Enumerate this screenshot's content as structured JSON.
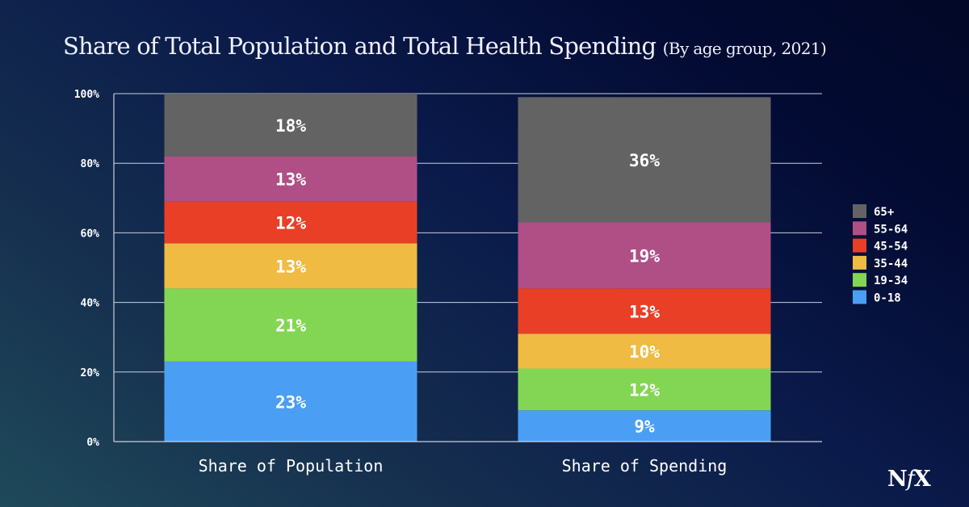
{
  "title": {
    "main": "Share of Total Population and Total Health Spending",
    "subtitle": "(By age group, 2021)"
  },
  "logo": {
    "n": "N",
    "f": "f",
    "x": "X"
  },
  "chart_data": {
    "type": "bar",
    "stacked": true,
    "title": "Share of Total Population and Total Health Spending (By age group, 2021)",
    "xlabel": "",
    "ylabel": "",
    "ylim": [
      0,
      100
    ],
    "yticks": [
      "0%",
      "20%",
      "40%",
      "60%",
      "80%",
      "100%"
    ],
    "ytick_values": [
      0,
      20,
      40,
      60,
      80,
      100
    ],
    "grid": true,
    "legend_position": "right",
    "categories": [
      "Share of Population",
      "Share of Spending"
    ],
    "series": [
      {
        "name": "0-18",
        "color": "#4a9ff5",
        "values": [
          23,
          9
        ],
        "labels": [
          "23%",
          "9%"
        ]
      },
      {
        "name": "19-34",
        "color": "#83d654",
        "values": [
          21,
          12
        ],
        "labels": [
          "21%",
          "12%"
        ]
      },
      {
        "name": "35-44",
        "color": "#efbb42",
        "values": [
          13,
          10
        ],
        "labels": [
          "13%",
          "10%"
        ]
      },
      {
        "name": "45-54",
        "color": "#e83f26",
        "values": [
          12,
          13
        ],
        "labels": [
          "12%",
          "13%"
        ]
      },
      {
        "name": "55-64",
        "color": "#b04f86",
        "values": [
          13,
          19
        ],
        "labels": [
          "13%",
          "19%"
        ]
      },
      {
        "name": "65+",
        "color": "#636363",
        "values": [
          18,
          36
        ],
        "labels": [
          "18%",
          "36%"
        ]
      }
    ],
    "legend_order": [
      "65+",
      "55-64",
      "45-54",
      "35-44",
      "19-34",
      "0-18"
    ]
  }
}
